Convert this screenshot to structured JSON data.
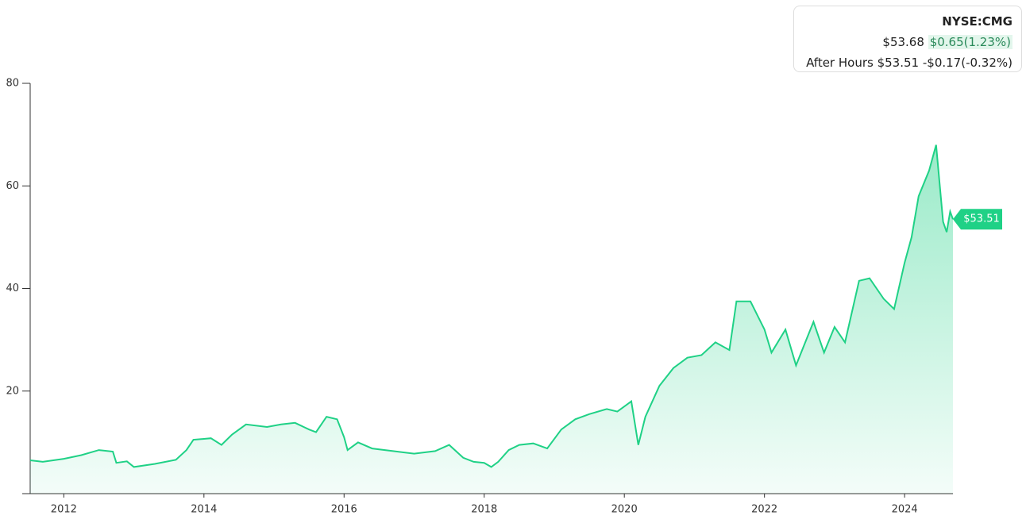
{
  "chart_data": {
    "type": "area",
    "x": [
      2011.52,
      2011.7,
      2012.0,
      2012.25,
      2012.5,
      2012.7,
      2012.75,
      2012.9,
      2013.0,
      2013.3,
      2013.6,
      2013.75,
      2013.85,
      2014.1,
      2014.25,
      2014.4,
      2014.6,
      2014.9,
      2015.1,
      2015.3,
      2015.5,
      2015.6,
      2015.75,
      2015.9,
      2016.0,
      2016.05,
      2016.2,
      2016.4,
      2016.7,
      2017.0,
      2017.3,
      2017.5,
      2017.7,
      2017.85,
      2018.0,
      2018.1,
      2018.2,
      2018.35,
      2018.5,
      2018.7,
      2018.9,
      2019.1,
      2019.3,
      2019.5,
      2019.75,
      2019.9,
      2020.1,
      2020.2,
      2020.3,
      2020.5,
      2020.7,
      2020.9,
      2021.1,
      2021.3,
      2021.5,
      2021.6,
      2021.8,
      2022.0,
      2022.1,
      2022.3,
      2022.45,
      2022.7,
      2022.85,
      2023.0,
      2023.15,
      2023.35,
      2023.5,
      2023.7,
      2023.85,
      2024.0,
      2024.1,
      2024.2,
      2024.35,
      2024.45,
      2024.55,
      2024.6,
      2024.65,
      2024.69
    ],
    "values": [
      6.5,
      6.2,
      6.8,
      7.5,
      8.5,
      8.2,
      6.0,
      6.3,
      5.2,
      5.8,
      6.6,
      8.5,
      10.5,
      10.8,
      9.5,
      11.5,
      13.5,
      13.0,
      13.5,
      13.8,
      12.5,
      12.0,
      15.0,
      14.5,
      11.0,
      8.5,
      10.0,
      8.8,
      8.3,
      7.8,
      8.3,
      9.5,
      7.0,
      6.2,
      6.0,
      5.2,
      6.2,
      8.5,
      9.5,
      9.8,
      8.8,
      12.5,
      14.5,
      15.5,
      16.5,
      16.0,
      18.0,
      9.5,
      15.0,
      21.0,
      24.5,
      26.5,
      27.0,
      29.5,
      28.0,
      37.5,
      37.5,
      32.0,
      27.5,
      32.0,
      25.0,
      33.5,
      27.5,
      32.5,
      29.5,
      41.5,
      42.0,
      38.0,
      36.0,
      45.0,
      50.0,
      58.0,
      63.0,
      68.0,
      53.0,
      51.0,
      55.0,
      53.51
    ],
    "color": "#1fd186",
    "xlim": [
      2011.52,
      2024.69
    ],
    "xticks": [
      2012,
      2014,
      2016,
      2018,
      2020,
      2022,
      2024
    ],
    "ylim": [
      0,
      80
    ],
    "yticks": [
      20,
      40,
      60,
      80
    ],
    "current": {
      "value": 53.51,
      "label": "$53.51"
    }
  },
  "quote": {
    "symbol": "NYSE:CMG",
    "price": "$53.68",
    "change": "$0.65(1.23%)",
    "after_hours_label": "After Hours",
    "after_hours_price": "$53.51",
    "after_hours_change": "-$0.17(-0.32%)"
  }
}
